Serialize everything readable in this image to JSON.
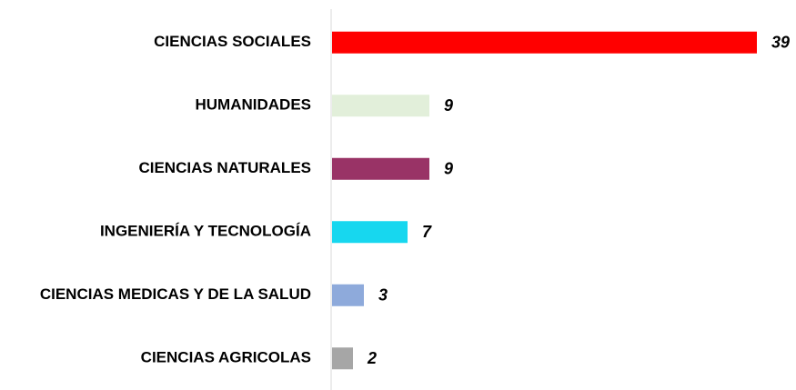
{
  "chart_data": {
    "type": "bar",
    "orientation": "horizontal",
    "categories": [
      "CIENCIAS SOCIALES",
      "HUMANIDADES",
      "CIENCIAS NATURALES",
      "INGENIERÍA Y TECNOLOGÍA",
      "CIENCIAS MEDICAS Y DE LA SALUD",
      "CIENCIAS AGRICOLAS"
    ],
    "values": [
      39,
      9,
      9,
      7,
      3,
      2
    ],
    "colors": [
      "#ff0000",
      "#e2efda",
      "#993366",
      "#17d7ef",
      "#8eaadb",
      "#a6a6a6"
    ]
  }
}
